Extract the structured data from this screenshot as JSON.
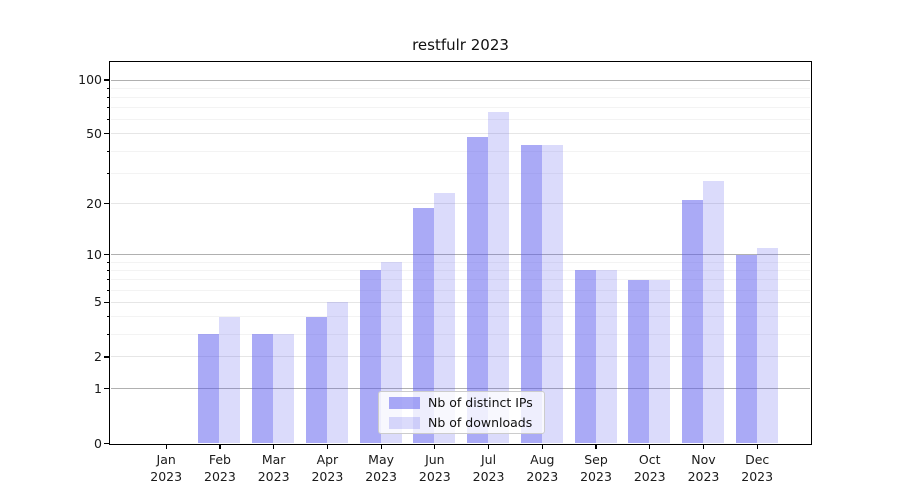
{
  "chart_data": {
    "type": "bar",
    "title": "restfulr 2023",
    "months": [
      "Jan",
      "Feb",
      "Mar",
      "Apr",
      "May",
      "Jun",
      "Jul",
      "Aug",
      "Sep",
      "Oct",
      "Nov",
      "Dec"
    ],
    "year_label": "2023",
    "series": [
      {
        "name": "Nb of distinct IPs",
        "color": "rgba(85,85,238,0.50)",
        "values": [
          0,
          3,
          3,
          4,
          8,
          19,
          48,
          43,
          8,
          7,
          21,
          10
        ]
      },
      {
        "name": "Nb of downloads",
        "color": "rgba(85,85,238,0.21)",
        "values": [
          0,
          4,
          3,
          5,
          9,
          23,
          66,
          43,
          8,
          7,
          27,
          11
        ]
      }
    ],
    "yscale": "log1p",
    "ylim": [
      0,
      126
    ],
    "yticks": [
      0,
      1,
      2,
      5,
      10,
      20,
      50,
      100
    ],
    "grid_emphasis": [
      1,
      10,
      100
    ],
    "grid_major": [
      2,
      5,
      20,
      50
    ],
    "grid_minor": [
      3,
      4,
      6,
      7,
      8,
      9,
      30,
      40,
      60,
      70,
      80,
      90
    ],
    "legend_position": "lower-center"
  },
  "colors": {
    "grid_emphasis": "#b0b0b0",
    "grid_major": "#e6e6e6",
    "grid_minor": "#f3f3f3",
    "axis": "#000000",
    "text": "#1a1a1a",
    "legend_border": "#cccccc"
  }
}
